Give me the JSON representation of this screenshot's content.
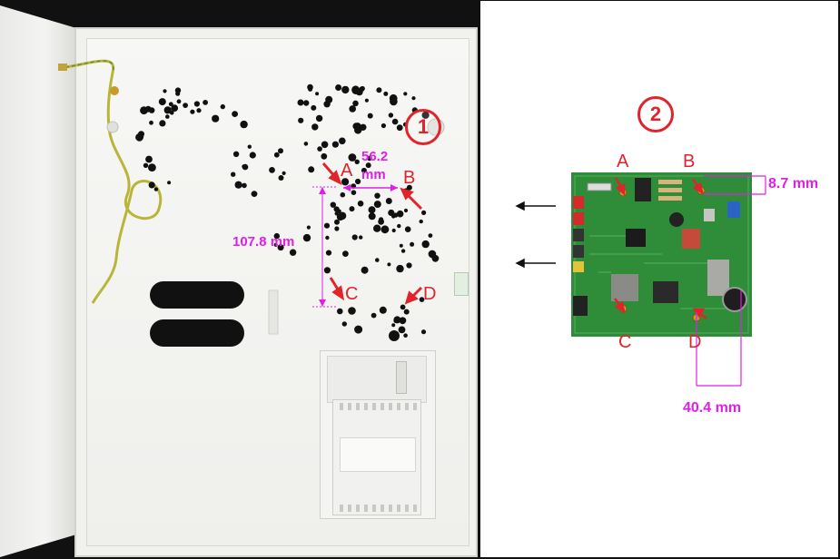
{
  "step_badges": {
    "left": "1",
    "right": "2"
  },
  "mounting_points": {
    "a": "A",
    "b": "B",
    "c": "C",
    "d": "D"
  },
  "pcb_points": {
    "a": "A",
    "b": "B",
    "c": "C",
    "d": "D"
  },
  "dimensions": {
    "horizontal_ab_line1": "56.2",
    "horizontal_ab_line2": "mm",
    "vertical_ac": "107.8 mm",
    "pcb_b_offset": "8.7 mm",
    "pcb_width_d": "40.4 mm"
  },
  "colors": {
    "dimension": "#e21ee6",
    "marker": "#e0242b",
    "pcb": "#2f8d3a"
  },
  "icons": [
    "red-arrow-icon",
    "black-arrow-left-icon"
  ]
}
